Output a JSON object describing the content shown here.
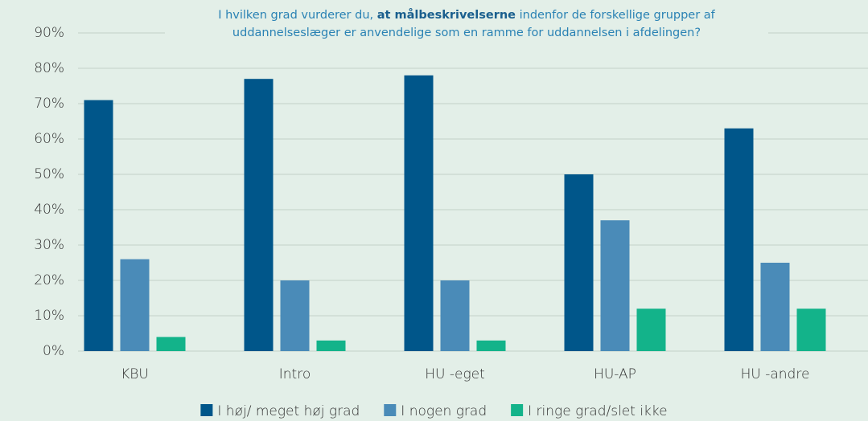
{
  "chart_data": {
    "type": "bar",
    "title": [
      "I hvilken grad vurderer du, ",
      "at målbeskrivelserne",
      " indenfor de forskellige grupper af uddannelseslæger er anvendelige som en ramme for uddannelsen i afdelingen?"
    ],
    "categories": [
      "KBU",
      "Intro",
      "HU -eget",
      "HU-AP",
      "HU -andre"
    ],
    "series": [
      {
        "name": "I høj/ meget høj grad",
        "color": "#00568a",
        "values": [
          71,
          77,
          78,
          50,
          63
        ]
      },
      {
        "name": "I nogen grad",
        "color": "#4a8bb8",
        "values": [
          26,
          20,
          20,
          37,
          25
        ]
      },
      {
        "name": "I ringe grad/slet ikke",
        "color": "#13b38a",
        "values": [
          4,
          3,
          3,
          12,
          12
        ]
      }
    ],
    "ylim": [
      0,
      90
    ],
    "yticks": [
      {
        "value": 0,
        "label": "0%"
      },
      {
        "value": 10,
        "label": "10%"
      },
      {
        "value": 20,
        "label": "20%"
      },
      {
        "value": 30,
        "label": "30%"
      },
      {
        "value": 40,
        "label": "40%"
      },
      {
        "value": 50,
        "label": "50%"
      },
      {
        "value": 60,
        "label": "60%"
      },
      {
        "value": 70,
        "label": "70%"
      },
      {
        "value": 80,
        "label": "80%"
      },
      {
        "value": 90,
        "label": "90%"
      }
    ],
    "grid": true
  }
}
